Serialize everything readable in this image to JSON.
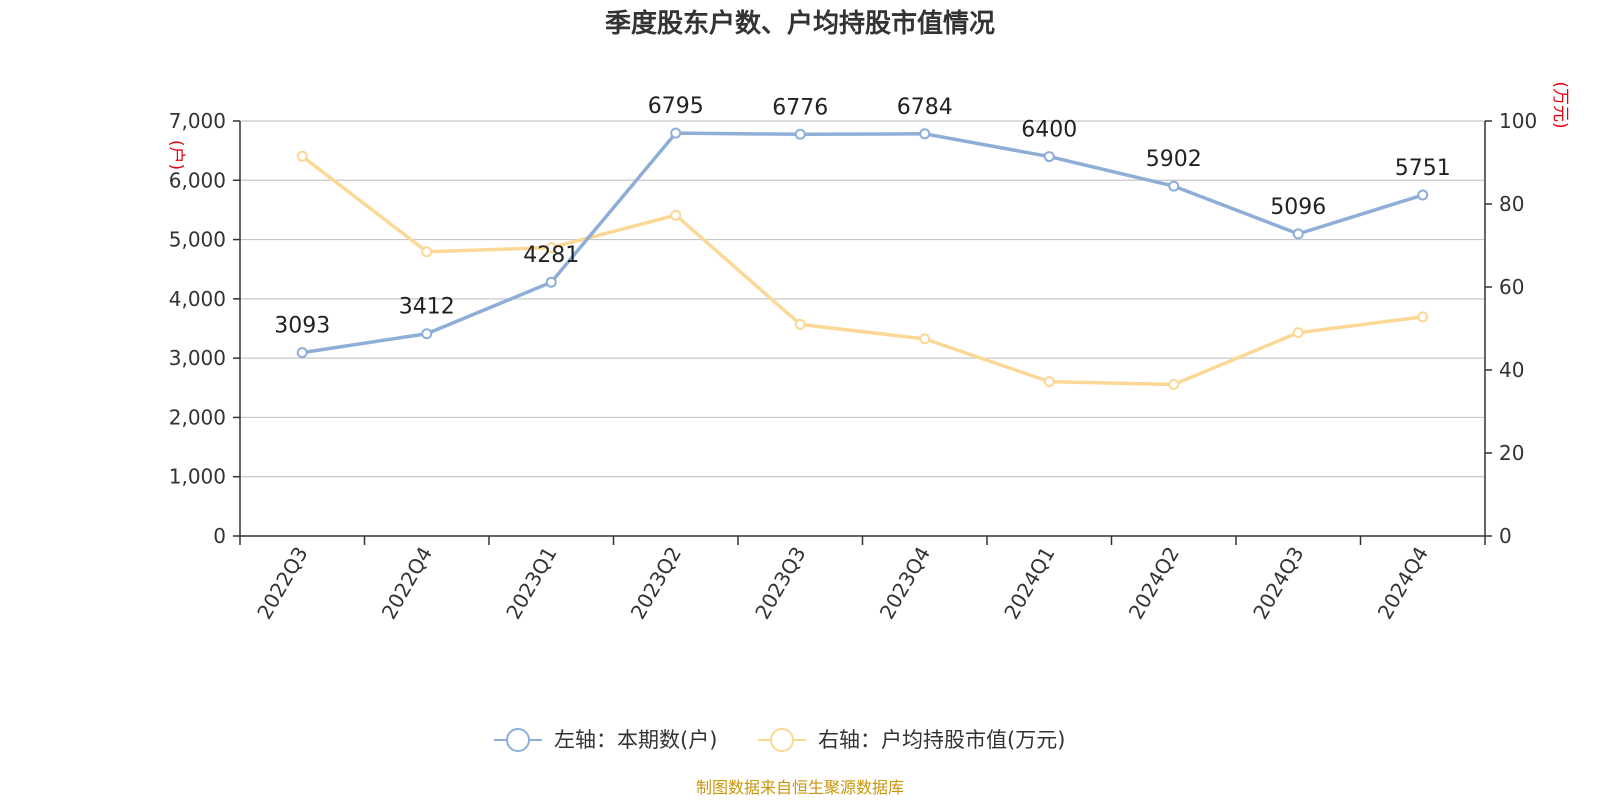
{
  "chart_data": {
    "type": "line",
    "title": "季度股东户数、户均持股市值情况",
    "categories": [
      "2022Q3",
      "2022Q4",
      "2023Q1",
      "2023Q2",
      "2023Q3",
      "2023Q4",
      "2024Q1",
      "2024Q2",
      "2024Q3",
      "2024Q4"
    ],
    "series": [
      {
        "name": "左轴：本期数(户)",
        "axis": "left",
        "color": "#8eaed8",
        "values": [
          3093,
          3412,
          4281,
          6795,
          6776,
          6784,
          6400,
          5902,
          5096,
          5751
        ],
        "labels": [
          "3093",
          "3412",
          "4281",
          "6795",
          "6776",
          "6784",
          "6400",
          "5902",
          "5096",
          "5751"
        ]
      },
      {
        "name": "右轴：户均持股市值(万元)",
        "axis": "right",
        "color": "#fbd896",
        "values": [
          91.5,
          68.5,
          69.5,
          77.3,
          51.0,
          47.5,
          37.2,
          36.5,
          49.0,
          52.8
        ]
      }
    ],
    "y_left": {
      "unit": "(户)",
      "ylim": [
        0,
        7000
      ],
      "ticks": [
        0,
        1000,
        2000,
        3000,
        4000,
        5000,
        6000,
        7000
      ],
      "tick_labels": [
        "0",
        "1,000",
        "2,000",
        "3,000",
        "4,000",
        "5,000",
        "6,000",
        "7,000"
      ]
    },
    "y_right": {
      "unit": "(万元)",
      "ylim": [
        0,
        100
      ],
      "ticks": [
        0,
        20,
        40,
        60,
        80,
        100
      ],
      "tick_labels": [
        "0",
        "20",
        "40",
        "60",
        "80",
        "100"
      ]
    },
    "grid": true,
    "legend_position": "bottom",
    "source": "制图数据来自恒生聚源数据库"
  }
}
